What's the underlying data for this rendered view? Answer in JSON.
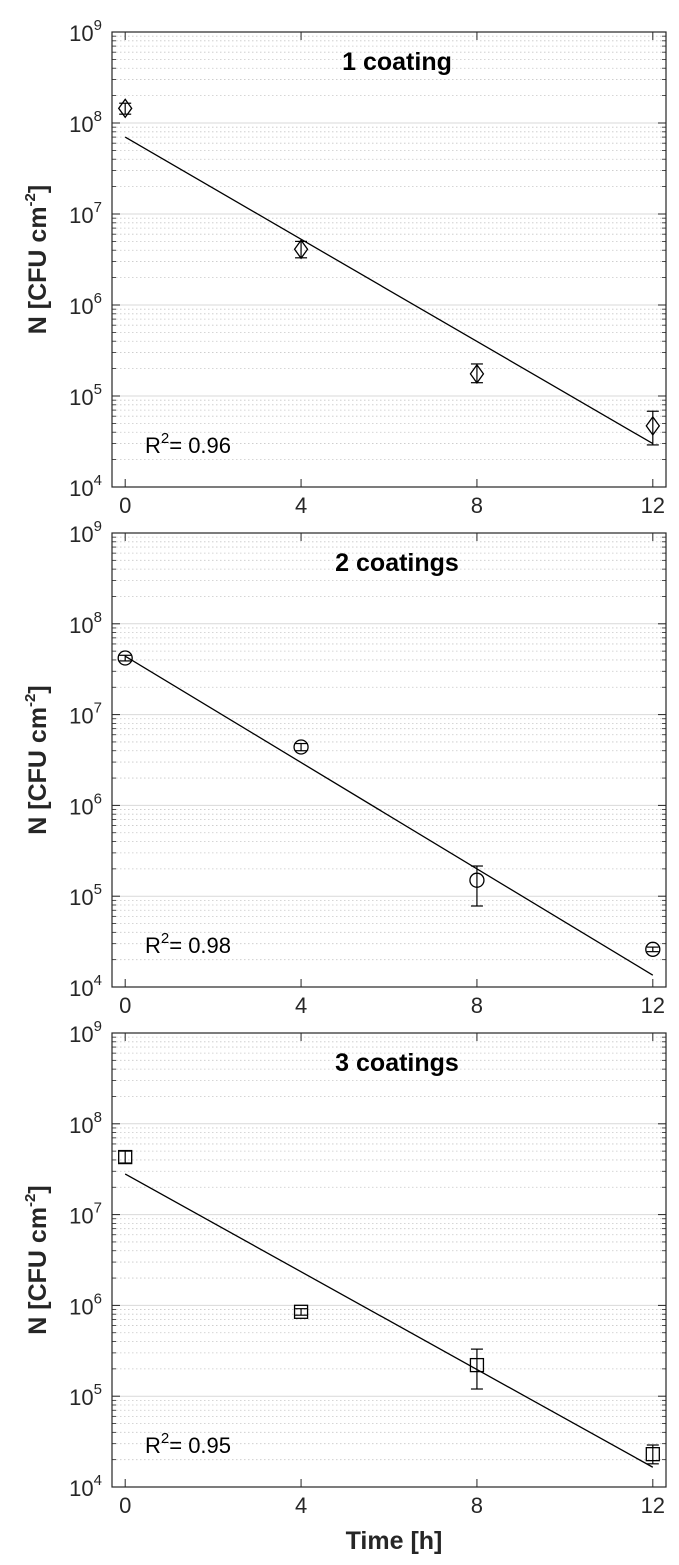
{
  "figure": {
    "xlabel": "Time [h]",
    "colors": {
      "axis": "#262626",
      "marker": "#000000",
      "fit": "#000000",
      "grid": "#d9d9d9"
    }
  },
  "chart_data": [
    {
      "type": "scatter",
      "title": "1 coating",
      "ylabel_main": "N [CFU cm",
      "ylabel_sup": "-2",
      "ylabel_close": "]",
      "xlabel": "",
      "y_scale": "log",
      "xlim": [
        -0.3,
        12.3
      ],
      "ylim": [
        10000,
        1000000000
      ],
      "x_ticks": [
        0,
        4,
        8,
        12
      ],
      "x_tick_labels": [
        "0",
        "4",
        "8",
        "12"
      ],
      "y_ticks": [
        10000,
        100000,
        1000000,
        10000000,
        100000000,
        1000000000
      ],
      "y_tick_labels": [
        {
          "base": "10",
          "exp": "4"
        },
        {
          "base": "10",
          "exp": "5"
        },
        {
          "base": "10",
          "exp": "6"
        },
        {
          "base": "10",
          "exp": "7"
        },
        {
          "base": "10",
          "exp": "8"
        },
        {
          "base": "10",
          "exp": "9"
        }
      ],
      "grid": "major+minor",
      "marker": "diamond",
      "x": [
        0,
        4,
        8,
        12
      ],
      "y": [
        145000000,
        4100000,
        175000,
        47000
      ],
      "y_err_low": [
        125000000,
        3300000,
        140000,
        29000
      ],
      "y_err_high": [
        165000000,
        5000000,
        225000,
        68000
      ],
      "fit_line": {
        "x": [
          0,
          12
        ],
        "y": [
          70000000,
          30000
        ]
      },
      "r2_label": "R",
      "r2_sup": "2",
      "r2_value": "= 0.96"
    },
    {
      "type": "scatter",
      "title": "2 coatings",
      "ylabel_main": "N [CFU cm",
      "ylabel_sup": "-2",
      "ylabel_close": "]",
      "xlabel": "",
      "y_scale": "log",
      "xlim": [
        -0.3,
        12.3
      ],
      "ylim": [
        10000,
        1000000000
      ],
      "x_ticks": [
        0,
        4,
        8,
        12
      ],
      "x_tick_labels": [
        "0",
        "4",
        "8",
        "12"
      ],
      "y_ticks": [
        10000,
        100000,
        1000000,
        10000000,
        100000000,
        1000000000
      ],
      "y_tick_labels": [
        {
          "base": "10",
          "exp": "4"
        },
        {
          "base": "10",
          "exp": "5"
        },
        {
          "base": "10",
          "exp": "6"
        },
        {
          "base": "10",
          "exp": "7"
        },
        {
          "base": "10",
          "exp": "8"
        },
        {
          "base": "10",
          "exp": "9"
        }
      ],
      "grid": "major+minor",
      "marker": "circle",
      "x": [
        0,
        4,
        8,
        12
      ],
      "y": [
        42000000,
        4400000,
        150000,
        26000
      ],
      "y_err_low": [
        39000000,
        4000000,
        78000,
        24500
      ],
      "y_err_high": [
        45000000,
        4800000,
        215000,
        27500
      ],
      "fit_line": {
        "x": [
          0,
          12
        ],
        "y": [
          44000000,
          13500
        ]
      },
      "r2_label": "R",
      "r2_sup": "2",
      "r2_value": "= 0.98"
    },
    {
      "type": "scatter",
      "title": "3 coatings",
      "ylabel_main": "N [CFU cm",
      "ylabel_sup": "-2",
      "ylabel_close": "]",
      "xlabel": "Time [h]",
      "y_scale": "log",
      "xlim": [
        -0.3,
        12.3
      ],
      "ylim": [
        10000,
        1000000000
      ],
      "x_ticks": [
        0,
        4,
        8,
        12
      ],
      "x_tick_labels": [
        "0",
        "4",
        "8",
        "12"
      ],
      "y_ticks": [
        10000,
        100000,
        1000000,
        10000000,
        100000000,
        1000000000
      ],
      "y_tick_labels": [
        {
          "base": "10",
          "exp": "4"
        },
        {
          "base": "10",
          "exp": "5"
        },
        {
          "base": "10",
          "exp": "6"
        },
        {
          "base": "10",
          "exp": "7"
        },
        {
          "base": "10",
          "exp": "8"
        },
        {
          "base": "10",
          "exp": "9"
        }
      ],
      "grid": "major+minor",
      "marker": "square",
      "x": [
        0,
        4,
        8,
        12
      ],
      "y": [
        43000000,
        850000,
        220000,
        23000
      ],
      "y_err_low": [
        37000000,
        780000,
        120000,
        18000
      ],
      "y_err_high": [
        50000000,
        920000,
        330000,
        29000
      ],
      "fit_line": {
        "x": [
          0,
          12
        ],
        "y": [
          28000000,
          16500
        ]
      },
      "r2_label": "R",
      "r2_sup": "2",
      "r2_value": "= 0.95"
    }
  ]
}
